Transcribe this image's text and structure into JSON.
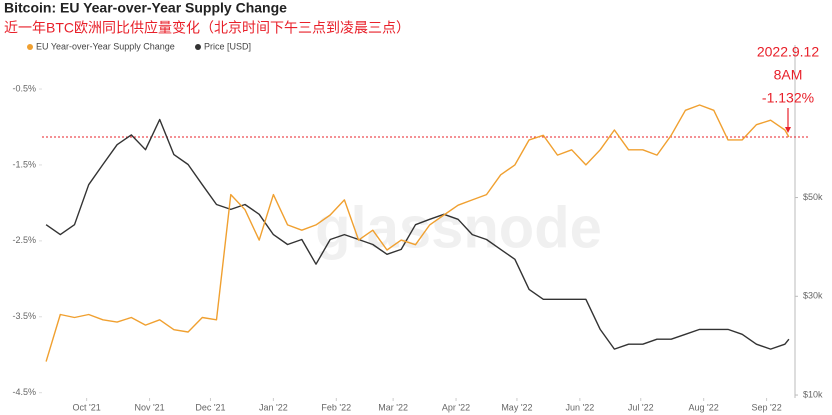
{
  "chart_data": {
    "type": "line",
    "title": "Bitcoin: EU Year-over-Year Supply Change",
    "subtitle": "近一年BTC欧洲同比供应量变化（北京时间下午三点到凌晨三点）",
    "watermark": "glassnode",
    "x": [
      "2021-09-11",
      "2021-09-18",
      "2021-09-25",
      "2021-10-02",
      "2021-10-09",
      "2021-10-16",
      "2021-10-23",
      "2021-10-30",
      "2021-11-06",
      "2021-11-13",
      "2021-11-20",
      "2021-11-27",
      "2021-12-04",
      "2021-12-11",
      "2021-12-18",
      "2021-12-25",
      "2022-01-01",
      "2022-01-08",
      "2022-01-15",
      "2022-01-22",
      "2022-01-29",
      "2022-02-05",
      "2022-02-12",
      "2022-02-19",
      "2022-02-26",
      "2022-03-05",
      "2022-03-12",
      "2022-03-19",
      "2022-03-26",
      "2022-04-02",
      "2022-04-09",
      "2022-04-16",
      "2022-04-23",
      "2022-04-30",
      "2022-05-07",
      "2022-05-14",
      "2022-05-21",
      "2022-05-28",
      "2022-06-04",
      "2022-06-11",
      "2022-06-18",
      "2022-06-25",
      "2022-07-02",
      "2022-07-09",
      "2022-07-16",
      "2022-07-23",
      "2022-07-30",
      "2022-08-06",
      "2022-08-13",
      "2022-08-20",
      "2022-08-27",
      "2022-09-03",
      "2022-09-10",
      "2022-09-12"
    ],
    "xlim": [
      "2021-09-09",
      "2022-09-15"
    ],
    "xticks": [
      {
        "value": "2021-10-01",
        "label": "Oct '21"
      },
      {
        "value": "2021-11-01",
        "label": "Nov '21"
      },
      {
        "value": "2021-12-01",
        "label": "Dec '21"
      },
      {
        "value": "2022-01-01",
        "label": "Jan '22"
      },
      {
        "value": "2022-02-01",
        "label": "Feb '22"
      },
      {
        "value": "2022-03-01",
        "label": "Mar '22"
      },
      {
        "value": "2022-04-01",
        "label": "Apr '22"
      },
      {
        "value": "2022-05-01",
        "label": "May '22"
      },
      {
        "value": "2022-06-01",
        "label": "Jun '22"
      },
      {
        "value": "2022-07-01",
        "label": "Jul '22"
      },
      {
        "value": "2022-08-01",
        "label": "Aug '22"
      },
      {
        "value": "2022-09-01",
        "label": "Sep '22"
      }
    ],
    "ylim": [
      -4.57,
      0.08
    ],
    "yticks": [
      {
        "value": -0.5,
        "label": "-0.5%"
      },
      {
        "value": -1.5,
        "label": "-1.5%"
      },
      {
        "value": -2.5,
        "label": "-2.5%"
      },
      {
        "value": -3.5,
        "label": "-3.5%"
      },
      {
        "value": -4.5,
        "label": "-4.5%"
      }
    ],
    "y2lim": [
      9400,
      80900
    ],
    "y2ticks": [
      {
        "value": 50000,
        "label": "$50k"
      },
      {
        "value": 30000,
        "label": "$30k"
      },
      {
        "value": 10000,
        "label": "$10k"
      }
    ],
    "legend": "top-left",
    "series": [
      {
        "name": "EU Year-over-Year Supply Change",
        "color": "#f0a030",
        "values": [
          -4.09,
          -3.47,
          -3.51,
          -3.47,
          -3.54,
          -3.57,
          -3.51,
          -3.61,
          -3.54,
          -3.67,
          -3.7,
          -3.51,
          -3.54,
          -1.89,
          -2.09,
          -2.49,
          -1.89,
          -2.29,
          -2.36,
          -2.29,
          -2.16,
          -1.96,
          -2.49,
          -2.36,
          -2.62,
          -2.49,
          -2.55,
          -2.29,
          -2.16,
          -2.03,
          -1.96,
          -1.89,
          -1.63,
          -1.5,
          -1.17,
          -1.11,
          -1.37,
          -1.3,
          -1.5,
          -1.3,
          -1.04,
          -1.3,
          -1.3,
          -1.37,
          -1.11,
          -0.78,
          -0.71,
          -0.78,
          -1.17,
          -1.17,
          -0.97,
          -0.91,
          -1.04,
          -1.132
        ]
      },
      {
        "name": "Price [USD]",
        "color": "#333333",
        "axis": "y2",
        "values": [
          44500,
          42500,
          44500,
          52600,
          56700,
          60700,
          62700,
          59700,
          65800,
          58700,
          56700,
          52600,
          48600,
          47600,
          48600,
          46600,
          42500,
          40500,
          41500,
          36500,
          41500,
          42500,
          41500,
          40500,
          38500,
          39500,
          44500,
          45600,
          46600,
          45600,
          42500,
          41500,
          39500,
          37500,
          31400,
          29400,
          29400,
          29400,
          29400,
          23300,
          19300,
          20300,
          20300,
          21300,
          21300,
          22300,
          23300,
          23300,
          23300,
          22300,
          20300,
          19300,
          20300,
          21300
        ]
      }
    ],
    "annotation": {
      "date": "2022.9.12",
      "time": "8AM",
      "value": -1.132,
      "value_label": "-1.132%",
      "color": "#e8202a"
    }
  }
}
